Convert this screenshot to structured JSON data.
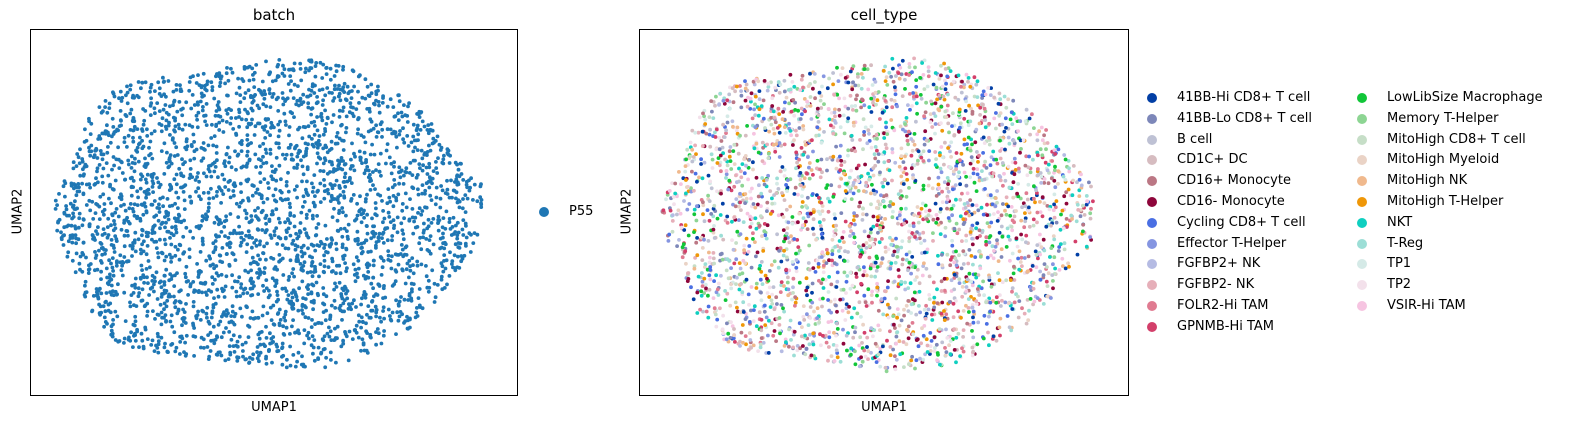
{
  "chart_data": [
    {
      "type": "scatter",
      "title": "batch",
      "xlabel": "UMAP1",
      "ylabel": "UMAP2",
      "ticks": "none",
      "grid": false,
      "legend_placement": "right",
      "categories": [
        "P55"
      ],
      "colors": [
        "#1f77b4"
      ],
      "n_points_approx": 3000
    },
    {
      "type": "scatter",
      "title": "cell_type",
      "xlabel": "UMAP1",
      "ylabel": "UMAP2",
      "ticks": "none",
      "grid": false,
      "legend_placement": "right, two columns",
      "categories": [
        "41BB-Hi CD8+ T cell",
        "41BB-Lo CD8+ T cell",
        "B cell",
        "CD1C+ DC",
        "CD16+ Monocyte",
        "CD16- Monocyte",
        "Cycling CD8+ T cell",
        "Effector T-Helper",
        "FGFBP2+ NK",
        "FGFBP2- NK",
        "FOLR2-Hi TAM",
        "GPNMB-Hi TAM",
        "LowLibSize Macrophage",
        "Memory T-Helper",
        "MitoHigh CD8+ T cell",
        "MitoHigh Myeloid",
        "MitoHigh NK",
        "MitoHigh T-Helper",
        "NKT",
        "T-Reg",
        "TP1",
        "TP2",
        "VSIR-Hi TAM"
      ],
      "colors": [
        "#023fa5",
        "#7d87b9",
        "#bec1d4",
        "#d6bcc0",
        "#bb7784",
        "#8e063b",
        "#4a6fe3",
        "#8595e1",
        "#b5bbe3",
        "#e6afb9",
        "#e07b91",
        "#d33f6a",
        "#11c638",
        "#8dd593",
        "#c6dec7",
        "#ead3c6",
        "#f0b98d",
        "#ef9708",
        "#0fcfc0",
        "#9cded6",
        "#d5eae7",
        "#f3e1eb",
        "#f6c4e1"
      ],
      "n_points_approx": 3000
    }
  ]
}
